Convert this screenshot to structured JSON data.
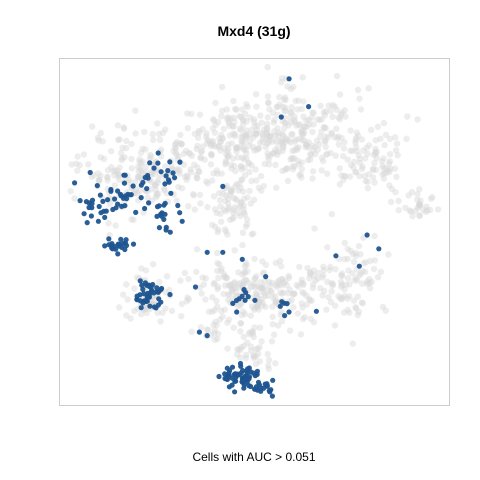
{
  "chart_data": {
    "type": "scatter",
    "title": "Mxd4 (31g)",
    "caption": "Cells with AUC > 0.051",
    "xlabel": "",
    "ylabel": "",
    "xlim": [
      0,
      100
    ],
    "ylim": [
      0,
      100
    ],
    "grid": false,
    "axes_visible": false,
    "colors": {
      "background_cells": "#d8d8d8",
      "highlighted_cells": "#1f5590"
    },
    "series": [
      {
        "role": "all_cells",
        "color": "#d8d8d8",
        "regions": [
          {
            "cx": 60,
            "cy": 78,
            "rx": 20,
            "ry": 14,
            "n": 330
          },
          {
            "cx": 41,
            "cy": 76,
            "rx": 9,
            "ry": 8,
            "n": 80
          },
          {
            "cx": 80,
            "cy": 70,
            "rx": 9,
            "ry": 9,
            "n": 70
          },
          {
            "cx": 92,
            "cy": 58,
            "rx": 5,
            "ry": 5,
            "n": 30
          },
          {
            "cx": 45,
            "cy": 57,
            "rx": 6,
            "ry": 12,
            "n": 70
          },
          {
            "cx": 23,
            "cy": 67,
            "rx": 17,
            "ry": 12,
            "n": 230
          },
          {
            "cx": 51,
            "cy": 32,
            "rx": 21,
            "ry": 9,
            "n": 250
          },
          {
            "cx": 75,
            "cy": 38,
            "rx": 9,
            "ry": 12,
            "n": 80
          },
          {
            "cx": 23,
            "cy": 31,
            "rx": 7,
            "ry": 7,
            "n": 60
          },
          {
            "cx": 50,
            "cy": 16,
            "rx": 5,
            "ry": 8,
            "n": 40
          },
          {
            "cx": 39,
            "cy": 21,
            "rx": 4,
            "ry": 3,
            "n": 12
          }
        ]
      },
      {
        "role": "cells_with_auc_above_threshold",
        "color": "#1f5590",
        "regions": [
          {
            "cx": 47,
            "cy": 8,
            "rx": 5,
            "ry": 3,
            "n": 55
          },
          {
            "cx": 52,
            "cy": 5,
            "rx": 3,
            "ry": 2,
            "n": 20
          },
          {
            "cx": 23,
            "cy": 32,
            "rx": 4,
            "ry": 4,
            "n": 45
          },
          {
            "cx": 15,
            "cy": 46,
            "rx": 4,
            "ry": 2,
            "n": 22
          },
          {
            "cx": 10,
            "cy": 57,
            "rx": 5,
            "ry": 5,
            "n": 22
          },
          {
            "cx": 18,
            "cy": 60,
            "rx": 6,
            "ry": 6,
            "n": 28
          },
          {
            "cx": 27,
            "cy": 55,
            "rx": 4,
            "ry": 5,
            "n": 18
          },
          {
            "cx": 26,
            "cy": 67,
            "rx": 4,
            "ry": 4,
            "n": 14
          },
          {
            "cx": 48,
            "cy": 30,
            "rx": 5,
            "ry": 6,
            "n": 10
          },
          {
            "cx": 57,
            "cy": 28,
            "rx": 3,
            "ry": 3,
            "n": 6
          }
        ],
        "points": [
          {
            "x": 59,
            "y": 94
          },
          {
            "x": 64,
            "y": 86
          },
          {
            "x": 57,
            "y": 83
          },
          {
            "x": 31,
            "y": 70
          },
          {
            "x": 42,
            "y": 63
          },
          {
            "x": 79,
            "y": 49
          },
          {
            "x": 82,
            "y": 45
          },
          {
            "x": 77,
            "y": 40
          },
          {
            "x": 71,
            "y": 43
          },
          {
            "x": 42,
            "y": 44
          },
          {
            "x": 38,
            "y": 44
          },
          {
            "x": 35,
            "y": 34
          },
          {
            "x": 38,
            "y": 20
          },
          {
            "x": 36,
            "y": 21
          },
          {
            "x": 66,
            "y": 27
          },
          {
            "x": 47,
            "y": 42
          },
          {
            "x": 53,
            "y": 37
          },
          {
            "x": 4,
            "y": 64
          },
          {
            "x": 8,
            "y": 67
          }
        ]
      }
    ]
  }
}
